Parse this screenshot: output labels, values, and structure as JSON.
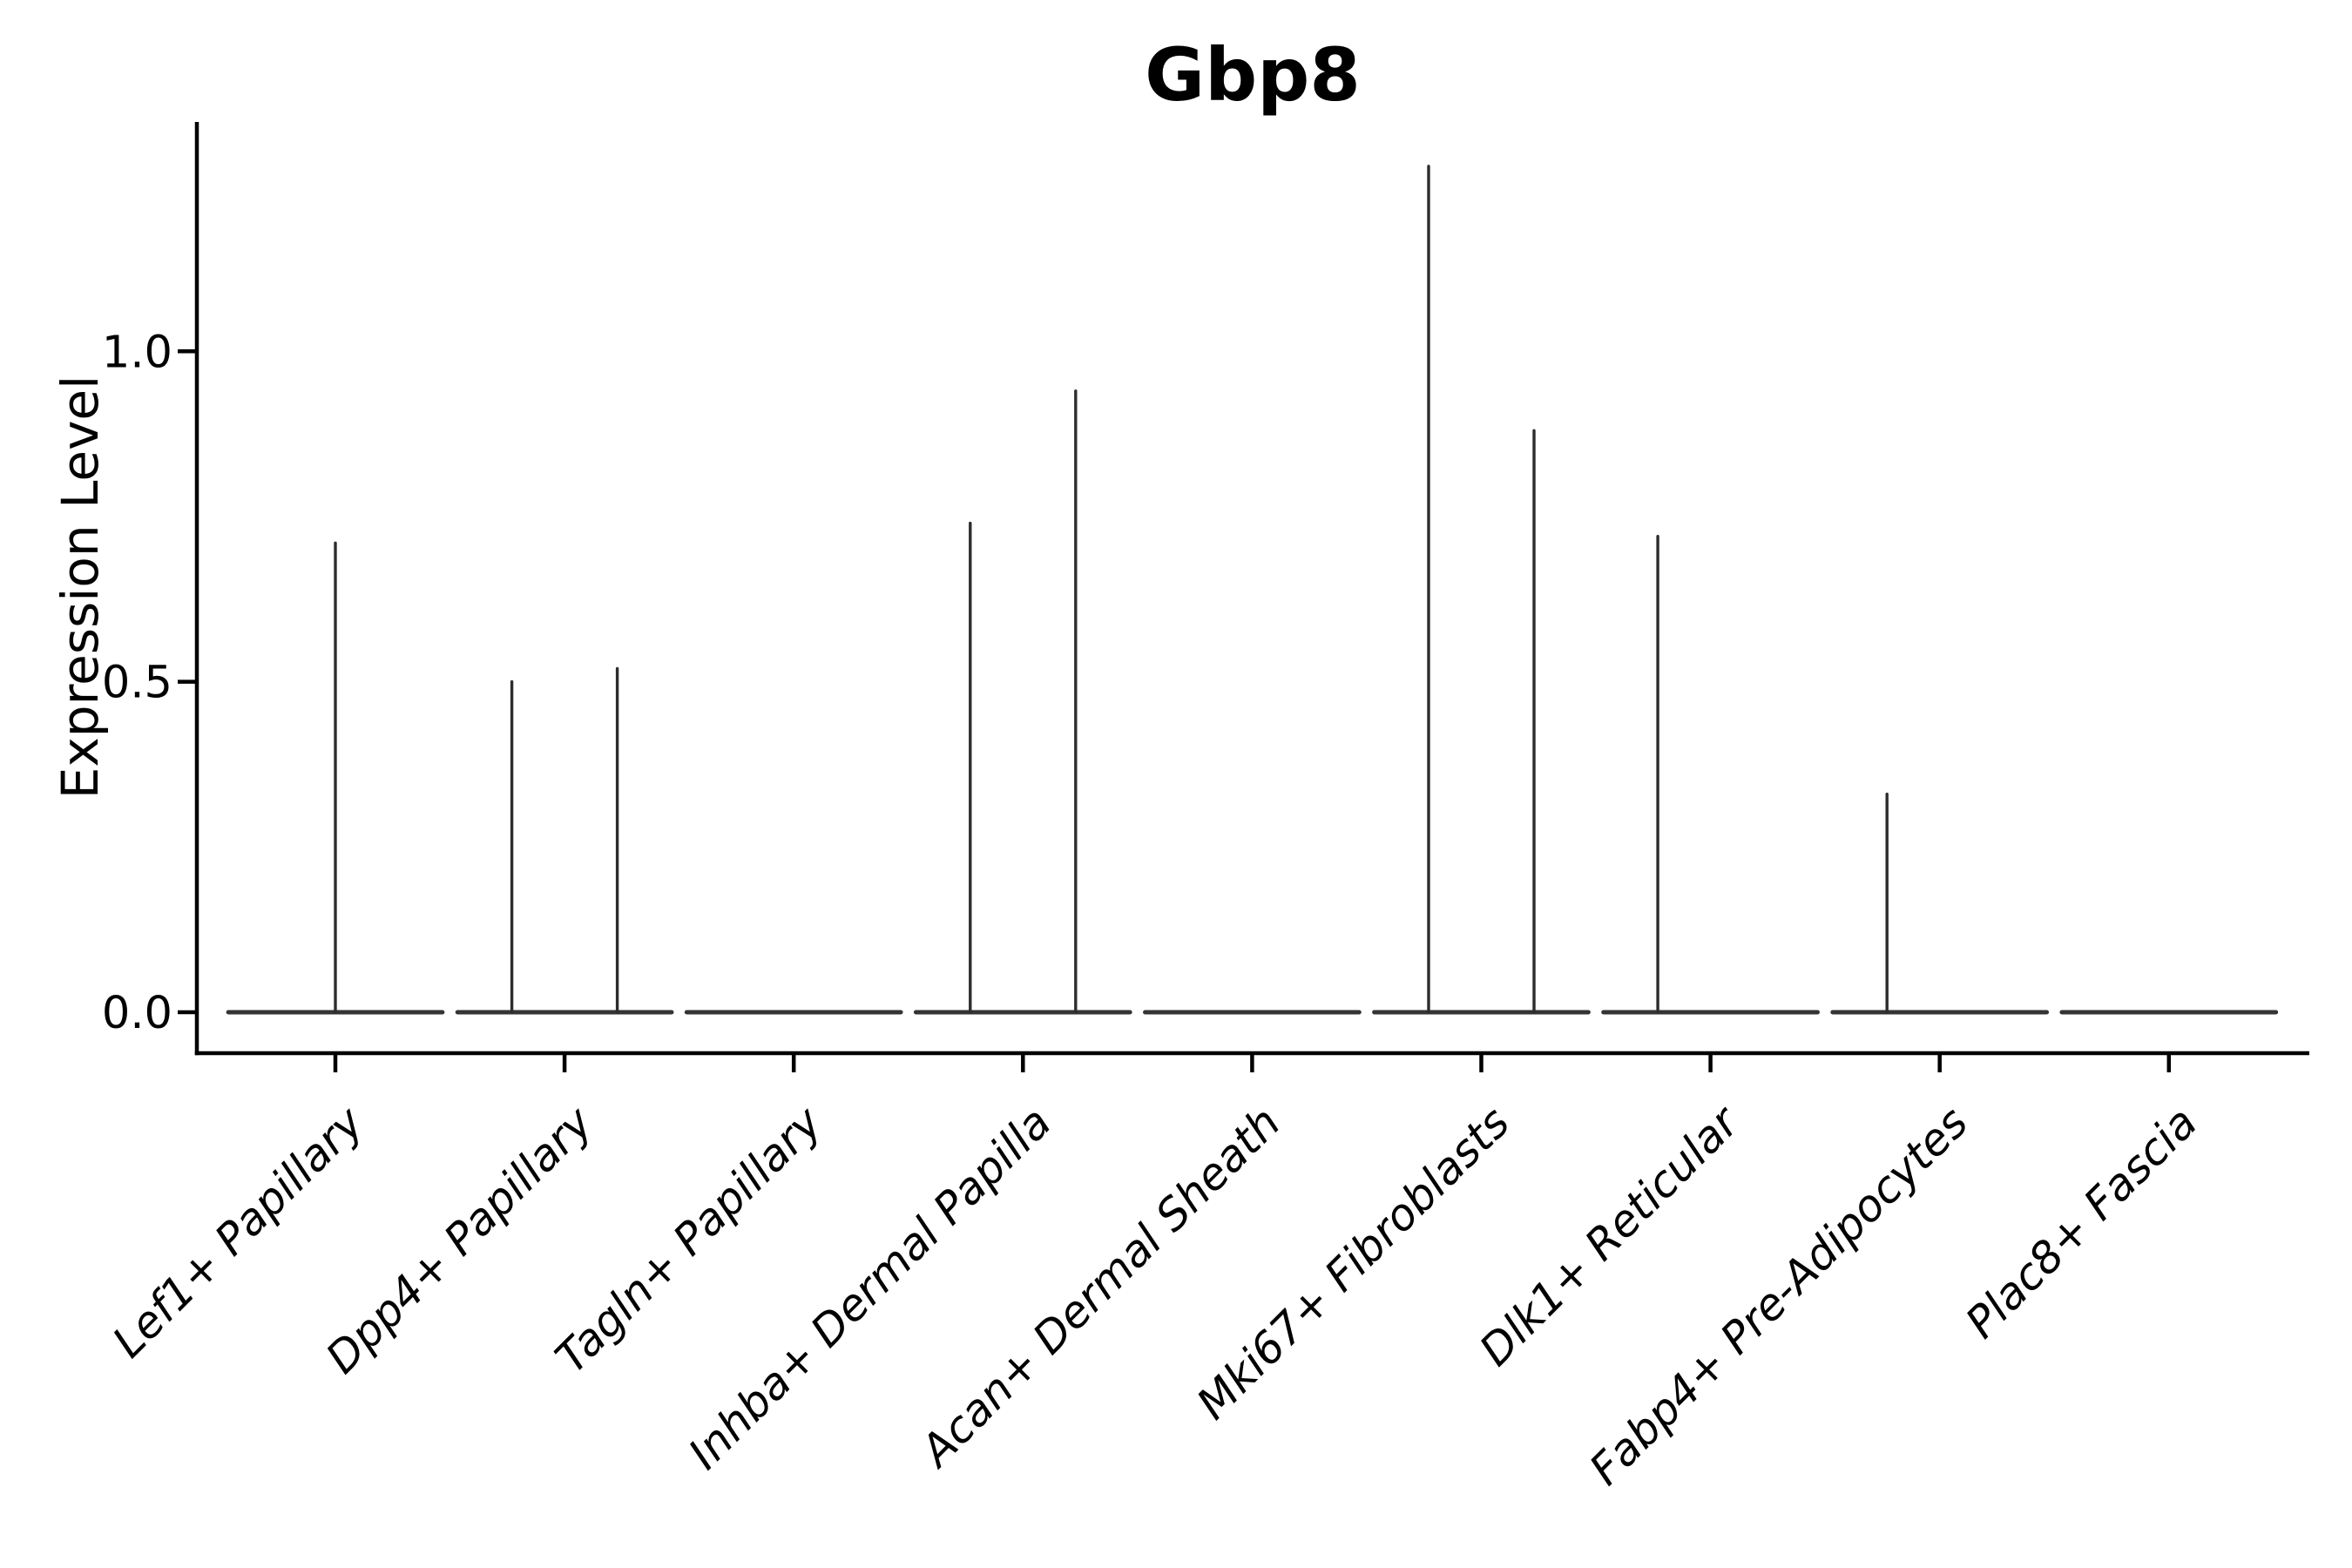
{
  "figure": {
    "background": "#ffffff"
  },
  "chart_data": {
    "type": "violin",
    "title": "Gbp8",
    "ylabel": "Expression Level",
    "xlabel": "",
    "ytick_labels": [
      "0.0",
      "0.5",
      "1.0"
    ],
    "ytick_values": [
      0.0,
      0.5,
      1.0
    ],
    "ylim": [
      -0.062,
      1.347
    ],
    "grid": false,
    "legend_position": "none",
    "categories": [
      "Lef1+ Papillary",
      "Dpp4+ Papillary",
      "Tagln+ Papillary",
      "Inhba+ Dermal Papilla",
      "Acan+ Dermal Sheath",
      "Mki67+ Fibroblasts",
      "Dlk1+ Reticular",
      "Fabp4+ Pre-Adipocytes",
      "Plac8+ Fascia"
    ],
    "violins": [
      {
        "category": "Lef1+ Papillary",
        "baseline": 0.0,
        "spikes": [
          {
            "offset_frac": 0.0,
            "peak": 0.71
          }
        ]
      },
      {
        "category": "Dpp4+ Papillary",
        "baseline": 0.0,
        "spikes": [
          {
            "offset_frac": -0.23,
            "peak": 0.5
          },
          {
            "offset_frac": 0.23,
            "peak": 0.52
          }
        ]
      },
      {
        "category": "Tagln+ Papillary",
        "baseline": 0.0,
        "spikes": []
      },
      {
        "category": "Inhba+ Dermal Papilla",
        "baseline": 0.0,
        "spikes": [
          {
            "offset_frac": -0.23,
            "peak": 0.74
          },
          {
            "offset_frac": 0.23,
            "peak": 0.94
          }
        ]
      },
      {
        "category": "Acan+ Dermal Sheath",
        "baseline": 0.0,
        "spikes": []
      },
      {
        "category": "Mki67+ Fibroblasts",
        "baseline": 0.0,
        "spikes": [
          {
            "offset_frac": -0.23,
            "peak": 1.28
          },
          {
            "offset_frac": 0.23,
            "peak": 0.88
          }
        ]
      },
      {
        "category": "Dlk1+ Reticular",
        "baseline": 0.0,
        "spikes": [
          {
            "offset_frac": -0.23,
            "peak": 0.72
          }
        ]
      },
      {
        "category": "Fabp4+ Pre-Adipocytes",
        "baseline": 0.0,
        "spikes": [
          {
            "offset_frac": -0.23,
            "peak": 0.33
          }
        ]
      },
      {
        "category": "Plac8+ Fascia",
        "baseline": 0.0,
        "spikes": []
      }
    ],
    "flat_halfwidth_frac": 0.467,
    "colors": {
      "violin_body": "#343434",
      "spike": "#2d2d2d",
      "axis": "#000000",
      "text": "#000000"
    }
  }
}
